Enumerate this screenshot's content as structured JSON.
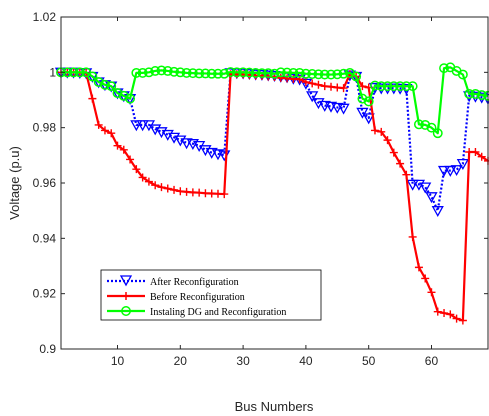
{
  "chart_data": {
    "type": "line",
    "title": "",
    "xlabel": "Bus Numbers",
    "ylabel": "Voltage (p.u)",
    "xlim": [
      1,
      69
    ],
    "ylim": [
      0.9,
      1.02
    ],
    "x_ticks": [
      10,
      20,
      30,
      40,
      50,
      60
    ],
    "y_ticks": [
      0.9,
      0.92,
      0.94,
      0.96,
      0.98,
      1,
      1.02
    ],
    "y_tick_labels": [
      "0.9",
      "0.92",
      "0.94",
      "0.96",
      "0.98",
      "1",
      "1.02"
    ],
    "grid": false,
    "legend_position": "lower-left",
    "x": [
      1,
      2,
      3,
      4,
      5,
      6,
      7,
      8,
      9,
      10,
      11,
      12,
      13,
      14,
      15,
      16,
      17,
      18,
      19,
      20,
      21,
      22,
      23,
      24,
      25,
      26,
      27,
      28,
      29,
      30,
      31,
      32,
      33,
      34,
      35,
      36,
      37,
      38,
      39,
      40,
      41,
      42,
      43,
      44,
      45,
      46,
      47,
      48,
      49,
      50,
      51,
      52,
      53,
      54,
      55,
      56,
      57,
      58,
      59,
      60,
      61,
      62,
      63,
      64,
      65,
      66,
      67,
      68,
      69
    ],
    "series": [
      {
        "name": "After Reconfiguration",
        "color": "#0000ff",
        "line_style": "dotted",
        "marker": "triangle-down",
        "values": [
          1.0,
          1.0,
          1.0,
          0.9999,
          0.9998,
          0.9985,
          0.9965,
          0.9955,
          0.995,
          0.9925,
          0.9915,
          0.9905,
          0.981,
          0.981,
          0.981,
          0.9795,
          0.9785,
          0.9775,
          0.9765,
          0.9755,
          0.9745,
          0.9742,
          0.9735,
          0.972,
          0.971,
          0.9705,
          0.9701,
          0.9998,
          0.9998,
          0.9997,
          0.9995,
          0.9993,
          0.9992,
          0.999,
          0.9988,
          0.9985,
          0.9983,
          0.9978,
          0.9975,
          0.996,
          0.9915,
          0.989,
          0.988,
          0.9877,
          0.9873,
          0.987,
          0.999,
          0.9985,
          0.9855,
          0.9835,
          0.9945,
          0.9943,
          0.9943,
          0.9943,
          0.9942,
          0.9941,
          0.9595,
          0.9595,
          0.9585,
          0.955,
          0.95,
          0.9645,
          0.9645,
          0.9648,
          0.967,
          0.9915,
          0.9913,
          0.991,
          0.9905
        ]
      },
      {
        "name": "Before Reconfiguration",
        "color": "#ff0000",
        "line_style": "solid",
        "marker": "plus",
        "values": [
          1.0,
          1.0,
          1.0,
          0.9999,
          0.9998,
          0.9905,
          0.981,
          0.979,
          0.978,
          0.9735,
          0.972,
          0.9685,
          0.965,
          0.962,
          0.9605,
          0.9592,
          0.9585,
          0.958,
          0.9575,
          0.957,
          0.9568,
          0.9566,
          0.9565,
          0.9563,
          0.9562,
          0.9561,
          0.956,
          0.9993,
          0.9993,
          0.9992,
          0.999,
          0.9988,
          0.9987,
          0.9985,
          0.9983,
          0.998,
          0.9978,
          0.9976,
          0.9975,
          0.9965,
          0.996,
          0.9955,
          0.995,
          0.9948,
          0.9945,
          0.9943,
          0.9993,
          0.9985,
          0.995,
          0.9945,
          0.979,
          0.9785,
          0.9755,
          0.971,
          0.967,
          0.963,
          0.9405,
          0.9295,
          0.9255,
          0.9205,
          0.9135,
          0.913,
          0.9125,
          0.911,
          0.9103,
          0.9712,
          0.9712,
          0.9695,
          0.968
        ]
      },
      {
        "name": "Instaling DG and Reconfiguration",
        "color": "#00ff00",
        "line_style": "solid",
        "marker": "circle",
        "values": [
          1.0,
          1.0,
          1.0,
          1.0,
          1.0,
          0.9985,
          0.9965,
          0.9955,
          0.995,
          0.9925,
          0.9915,
          0.9905,
          0.9998,
          0.9998,
          1.0,
          1.0005,
          1.0007,
          1.0005,
          1.0002,
          1.0,
          0.9998,
          0.9997,
          0.9996,
          0.9996,
          0.9995,
          0.9995,
          0.9995,
          1.0001,
          1.0,
          1.0,
          0.9999,
          0.9998,
          0.9997,
          0.9997,
          0.9995,
          1.0,
          0.9999,
          0.9998,
          0.9998,
          0.9995,
          0.9994,
          0.9993,
          0.9992,
          0.9992,
          0.9993,
          0.9995,
          0.9998,
          0.9985,
          0.9905,
          0.9895,
          0.9952,
          0.995,
          0.995,
          0.995,
          0.995,
          0.995,
          0.995,
          0.9812,
          0.981,
          0.98,
          0.978,
          1.0015,
          1.0018,
          1.0005,
          0.9992,
          0.9922,
          0.9922,
          0.9918,
          0.9915
        ]
      }
    ]
  }
}
